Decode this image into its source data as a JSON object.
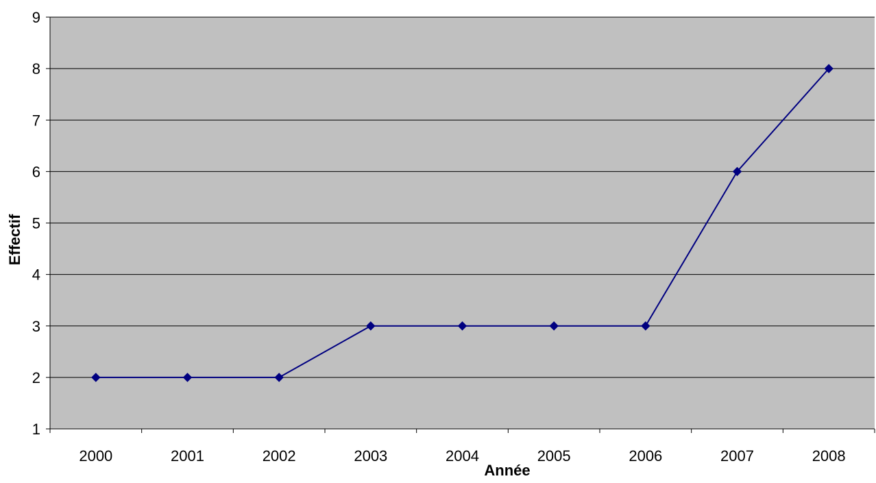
{
  "colors": {
    "plot_background": "#c0c0c0",
    "series_line": "#000080",
    "gridline": "#000000",
    "axis": "#000000"
  },
  "chart_data": {
    "type": "line",
    "categories": [
      "2000",
      "2001",
      "2002",
      "2003",
      "2004",
      "2005",
      "2006",
      "2007",
      "2008"
    ],
    "series": [
      {
        "values": [
          2,
          2,
          2,
          3,
          3,
          3,
          3,
          6,
          8
        ],
        "marker": "diamond"
      }
    ],
    "xlabel": "Année",
    "ylabel": "Effectif",
    "ylim": [
      1,
      9
    ],
    "yticks": [
      "1",
      "2",
      "3",
      "4",
      "5",
      "6",
      "7",
      "8",
      "9"
    ],
    "grid": "horizontal",
    "legend": "none"
  }
}
